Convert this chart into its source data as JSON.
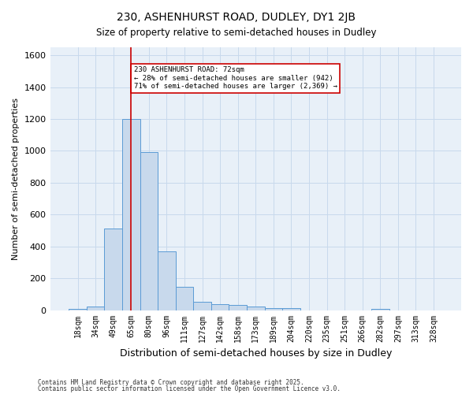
{
  "title_line1": "230, ASHENHURST ROAD, DUDLEY, DY1 2JB",
  "title_line2": "Size of property relative to semi-detached houses in Dudley",
  "xlabel": "Distribution of semi-detached houses by size in Dudley",
  "ylabel": "Number of semi-detached properties",
  "bar_labels": [
    "18sqm",
    "34sqm",
    "49sqm",
    "65sqm",
    "80sqm",
    "96sqm",
    "111sqm",
    "127sqm",
    "142sqm",
    "158sqm",
    "173sqm",
    "189sqm",
    "204sqm",
    "220sqm",
    "235sqm",
    "251sqm",
    "266sqm",
    "282sqm",
    "297sqm",
    "313sqm",
    "328sqm"
  ],
  "bar_values": [
    10,
    25,
    510,
    1200,
    990,
    370,
    148,
    50,
    37,
    30,
    22,
    12,
    12,
    0,
    0,
    0,
    0,
    10,
    0,
    0,
    0
  ],
  "bar_color": "#c8d9ec",
  "bar_edge_color": "#5b9bd5",
  "vline_x": 3,
  "vline_color": "#cc0000",
  "annotation_text": "230 ASHENHURST ROAD: 72sqm\n← 28% of semi-detached houses are smaller (942)\n71% of semi-detached houses are larger (2,369) →",
  "annotation_box_color": "#ffffff",
  "annotation_box_edge": "#cc0000",
  "ylim": [
    0,
    1650
  ],
  "yticks": [
    0,
    200,
    400,
    600,
    800,
    1000,
    1200,
    1400,
    1600
  ],
  "bg_color": "#ffffff",
  "grid_color": "#c8d9ec",
  "footer_line1": "Contains HM Land Registry data © Crown copyright and database right 2025.",
  "footer_line2": "Contains public sector information licensed under the Open Government Licence v3.0."
}
